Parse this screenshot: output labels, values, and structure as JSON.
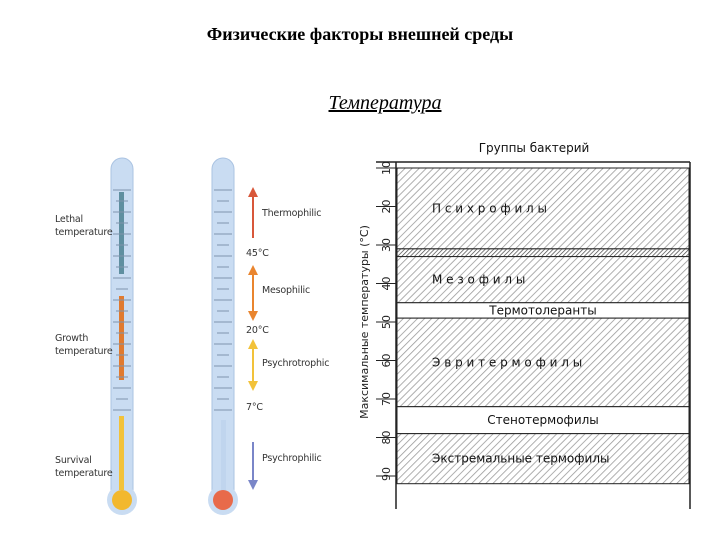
{
  "title": "Физические факторы внешней среды",
  "subtitle": "Температура",
  "left_thermometer": {
    "labels": [
      {
        "line1": "Lethal",
        "line2": "temperature"
      },
      {
        "line1": "Growth",
        "line2": "temperature"
      },
      {
        "line1": "Survival",
        "line2": "temperature"
      }
    ],
    "colors": {
      "tube": "#c9dcf2",
      "upper": "#5f8fa0",
      "middle": "#e07a30",
      "lower": "#f2c23a",
      "bulb": "#f2b82e"
    }
  },
  "right_thermometer": {
    "groups": [
      "Thermophilic",
      "Mesophilic",
      "Psychrotrophic",
      "Psychrophilic"
    ],
    "temps": [
      "45°C",
      "20°C",
      "7°C"
    ],
    "colors": {
      "thermo": "#d8573a",
      "meso": "#e9852f",
      "psychrotroph": "#f2c23a",
      "psychro": "#7a86c8",
      "bulb": "#e86a4a"
    }
  },
  "bacteria_chart": {
    "header": "Группы бактерий",
    "ylabel": "Максимальные температуры (°С)",
    "ticks": [
      "10",
      "20",
      "30",
      "40",
      "50",
      "60",
      "70",
      "80",
      "90"
    ],
    "bands": [
      {
        "label": "П  с  и  х  р  о  ф  и  л  ы",
        "from": 10,
        "to": 31,
        "hatched": true
      },
      {
        "label": "М  е  з  о  ф  и  л  ы",
        "from": 33,
        "to": 45,
        "hatched": true
      },
      {
        "label": "Термотолеранты",
        "from": 45,
        "to": 49,
        "hatched": false
      },
      {
        "label": "Э  в  р  и  т  е  р  м  о  ф  и  л  ы",
        "from": 49,
        "to": 72,
        "hatched": true
      },
      {
        "label": "Стенотермофилы",
        "from": 72,
        "to": 79,
        "hatched": false
      },
      {
        "label": "Экстремальные термофилы",
        "from": 79,
        "to": 92,
        "hatched": true
      }
    ]
  }
}
